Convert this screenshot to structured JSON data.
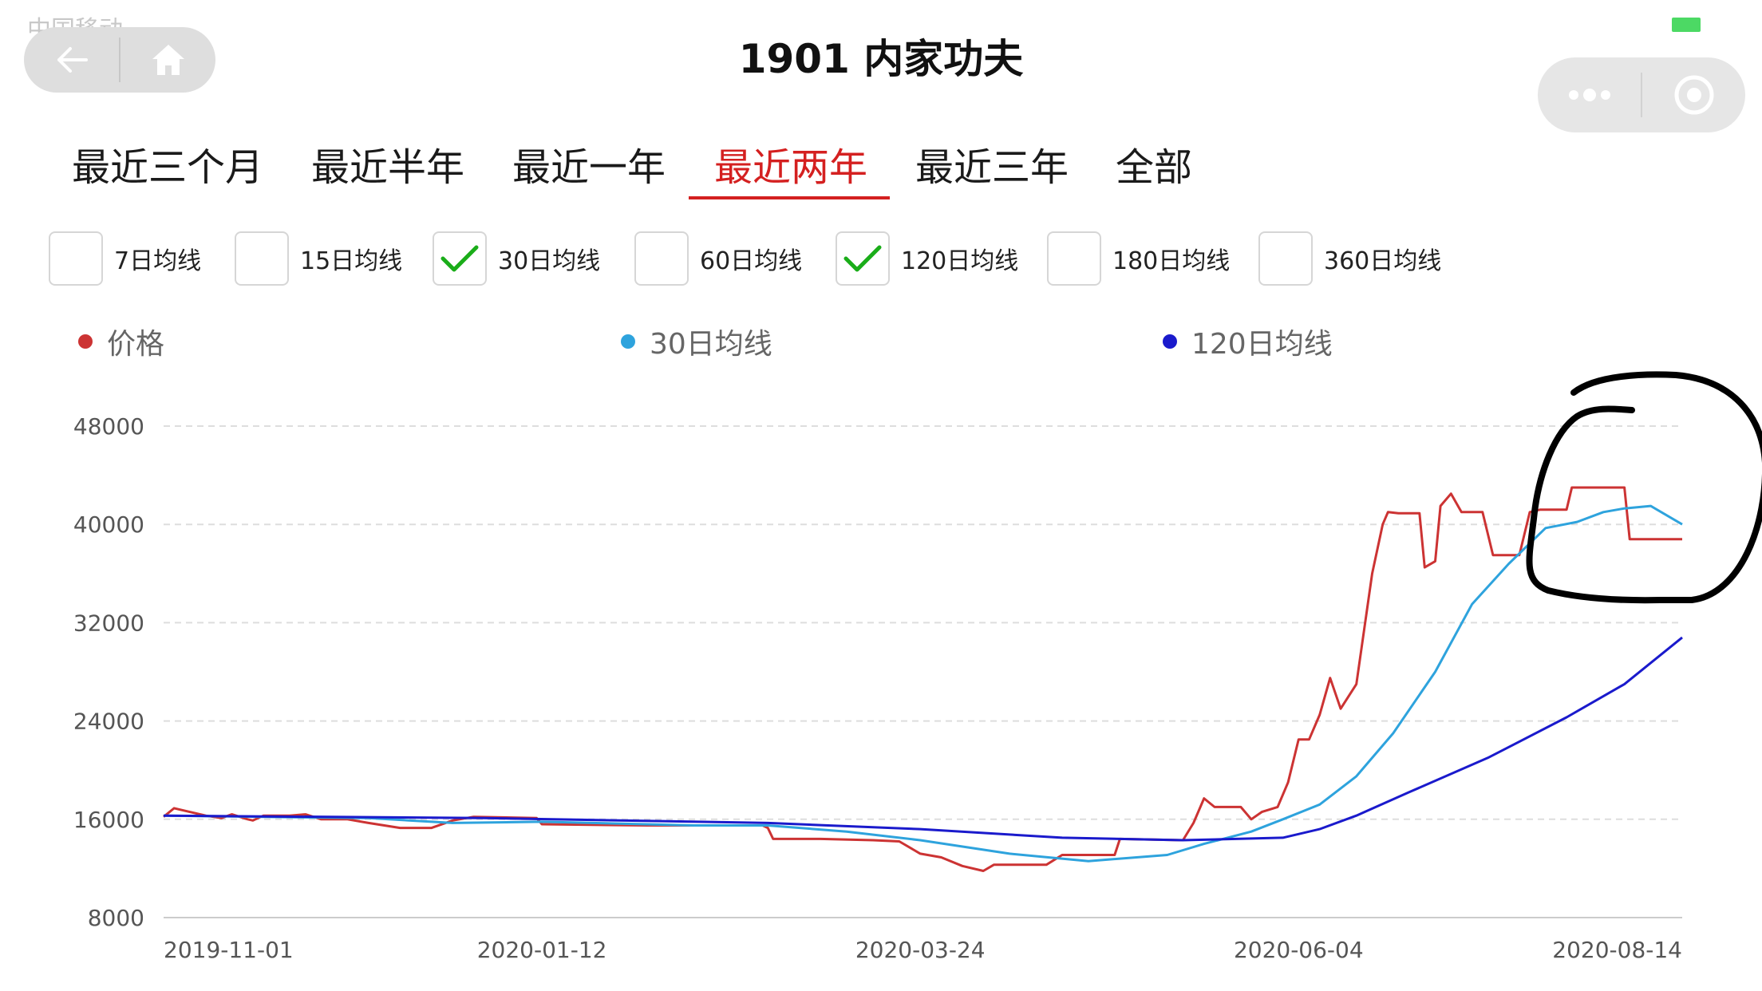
{
  "status_bar": {
    "carrier": "中国移动"
  },
  "nav": {
    "back_icon": "back-arrow-icon",
    "home_icon": "home-icon"
  },
  "capsule": {
    "more_icon": "more-dots-icon",
    "close_icon": "target-close-icon"
  },
  "page": {
    "title": "1901 内家功夫"
  },
  "tabs": [
    {
      "label": "最近三个月",
      "active": false
    },
    {
      "label": "最近半年",
      "active": false
    },
    {
      "label": "最近一年",
      "active": false
    },
    {
      "label": "最近两年",
      "active": true
    },
    {
      "label": "最近三年",
      "active": false
    },
    {
      "label": "全部",
      "active": false
    }
  ],
  "checkboxes": [
    {
      "label": "7日均线",
      "checked": false
    },
    {
      "label": "15日均线",
      "checked": false
    },
    {
      "label": "30日均线",
      "checked": true
    },
    {
      "label": "60日均线",
      "checked": false
    },
    {
      "label": "120日均线",
      "checked": true
    },
    {
      "label": "180日均线",
      "checked": false
    },
    {
      "label": "360日均线",
      "checked": false
    }
  ],
  "legend": [
    {
      "label": "价格",
      "color": "#cc3333"
    },
    {
      "label": "30日均线",
      "color": "#2ea3dd"
    },
    {
      "label": "120日均线",
      "color": "#1a1acc"
    }
  ],
  "colors": {
    "active": "#d42020",
    "check": "#1aad19",
    "grid": "#dddddd",
    "annotation": "#000000"
  },
  "chart_data": {
    "type": "line",
    "x_ticks": [
      "2019-11-01",
      "2020-01-12",
      "2020-03-24",
      "2020-06-04",
      "2020-08-14"
    ],
    "y_ticks": [
      8000,
      16000,
      24000,
      32000,
      40000,
      48000
    ],
    "ylim": [
      8000,
      48000
    ],
    "xlim": [
      "2019-11-01",
      "2020-08-16"
    ],
    "grid": true,
    "legend_position": "top",
    "series": [
      {
        "name": "价格",
        "color": "#cc3333",
        "points": [
          [
            "2019-11-01",
            16200
          ],
          [
            "2019-11-03",
            16900
          ],
          [
            "2019-11-06",
            16600
          ],
          [
            "2019-11-09",
            16300
          ],
          [
            "2019-11-12",
            16100
          ],
          [
            "2019-11-14",
            16400
          ],
          [
            "2019-11-17",
            16000
          ],
          [
            "2019-11-18",
            15900
          ],
          [
            "2019-11-20",
            16300
          ],
          [
            "2019-11-25",
            16300
          ],
          [
            "2019-11-28",
            16400
          ],
          [
            "2019-12-01",
            16000
          ],
          [
            "2019-12-06",
            16000
          ],
          [
            "2019-12-10",
            15700
          ],
          [
            "2019-12-13",
            15500
          ],
          [
            "2019-12-16",
            15300
          ],
          [
            "2019-12-22",
            15300
          ],
          [
            "2019-12-26",
            15900
          ],
          [
            "2019-12-30",
            16200
          ],
          [
            "2020-01-11",
            16100
          ],
          [
            "2020-01-12",
            15600
          ],
          [
            "2020-02-01",
            15500
          ],
          [
            "2020-02-23",
            15500
          ],
          [
            "2020-02-24",
            15300
          ],
          [
            "2020-02-25",
            14400
          ],
          [
            "2020-03-05",
            14400
          ],
          [
            "2020-03-15",
            14300
          ],
          [
            "2020-03-20",
            14200
          ],
          [
            "2020-03-24",
            13200
          ],
          [
            "2020-03-28",
            12900
          ],
          [
            "2020-04-01",
            12200
          ],
          [
            "2020-04-05",
            11800
          ],
          [
            "2020-04-07",
            12300
          ],
          [
            "2020-04-17",
            12300
          ],
          [
            "2020-04-20",
            13100
          ],
          [
            "2020-04-30",
            13100
          ],
          [
            "2020-05-01",
            14400
          ],
          [
            "2020-05-13",
            14300
          ],
          [
            "2020-05-15",
            15700
          ],
          [
            "2020-05-17",
            17700
          ],
          [
            "2020-05-19",
            17000
          ],
          [
            "2020-05-24",
            17000
          ],
          [
            "2020-05-26",
            16000
          ],
          [
            "2020-05-28",
            16600
          ],
          [
            "2020-05-31",
            17000
          ],
          [
            "2020-06-02",
            19000
          ],
          [
            "2020-06-04",
            22500
          ],
          [
            "2020-06-06",
            22500
          ],
          [
            "2020-06-08",
            24500
          ],
          [
            "2020-06-10",
            27500
          ],
          [
            "2020-06-12",
            25000
          ],
          [
            "2020-06-15",
            27000
          ],
          [
            "2020-06-18",
            36000
          ],
          [
            "2020-06-20",
            40000
          ],
          [
            "2020-06-21",
            41000
          ],
          [
            "2020-06-23",
            40900
          ],
          [
            "2020-06-27",
            40900
          ],
          [
            "2020-06-28",
            36500
          ],
          [
            "2020-06-30",
            37000
          ],
          [
            "2020-07-01",
            41500
          ],
          [
            "2020-07-03",
            42500
          ],
          [
            "2020-07-05",
            41000
          ],
          [
            "2020-07-09",
            41000
          ],
          [
            "2020-07-11",
            37500
          ],
          [
            "2020-07-16",
            37500
          ],
          [
            "2020-07-18",
            41000
          ],
          [
            "2020-07-20",
            41200
          ],
          [
            "2020-07-25",
            41200
          ],
          [
            "2020-07-26",
            43000
          ],
          [
            "2020-08-05",
            43000
          ],
          [
            "2020-08-06",
            38800
          ],
          [
            "2020-08-16",
            38800
          ]
        ]
      },
      {
        "name": "30日均线",
        "color": "#2ea3dd",
        "points": [
          [
            "2019-11-01",
            16300
          ],
          [
            "2019-11-20",
            16200
          ],
          [
            "2019-12-10",
            16100
          ],
          [
            "2019-12-26",
            15700
          ],
          [
            "2020-01-12",
            15800
          ],
          [
            "2020-02-10",
            15500
          ],
          [
            "2020-02-24",
            15500
          ],
          [
            "2020-03-10",
            15000
          ],
          [
            "2020-03-24",
            14300
          ],
          [
            "2020-04-10",
            13200
          ],
          [
            "2020-04-25",
            12600
          ],
          [
            "2020-05-10",
            13100
          ],
          [
            "2020-05-17",
            14000
          ],
          [
            "2020-05-26",
            15000
          ],
          [
            "2020-06-01",
            16000
          ],
          [
            "2020-06-08",
            17200
          ],
          [
            "2020-06-15",
            19500
          ],
          [
            "2020-06-22",
            23000
          ],
          [
            "2020-06-30",
            28000
          ],
          [
            "2020-07-07",
            33500
          ],
          [
            "2020-07-14",
            36800
          ],
          [
            "2020-07-21",
            39700
          ],
          [
            "2020-07-27",
            40200
          ],
          [
            "2020-08-01",
            41000
          ],
          [
            "2020-08-05",
            41300
          ],
          [
            "2020-08-10",
            41500
          ],
          [
            "2020-08-16",
            40000
          ]
        ]
      },
      {
        "name": "120日均线",
        "color": "#1a1acc",
        "points": [
          [
            "2019-11-01",
            16300
          ],
          [
            "2020-01-01",
            16100
          ],
          [
            "2020-02-24",
            15700
          ],
          [
            "2020-03-24",
            15200
          ],
          [
            "2020-04-20",
            14500
          ],
          [
            "2020-05-13",
            14300
          ],
          [
            "2020-06-01",
            14500
          ],
          [
            "2020-06-08",
            15200
          ],
          [
            "2020-06-15",
            16300
          ],
          [
            "2020-06-25",
            18200
          ],
          [
            "2020-07-10",
            21000
          ],
          [
            "2020-07-25",
            24300
          ],
          [
            "2020-08-05",
            27000
          ],
          [
            "2020-08-16",
            30800
          ]
        ]
      }
    ]
  }
}
